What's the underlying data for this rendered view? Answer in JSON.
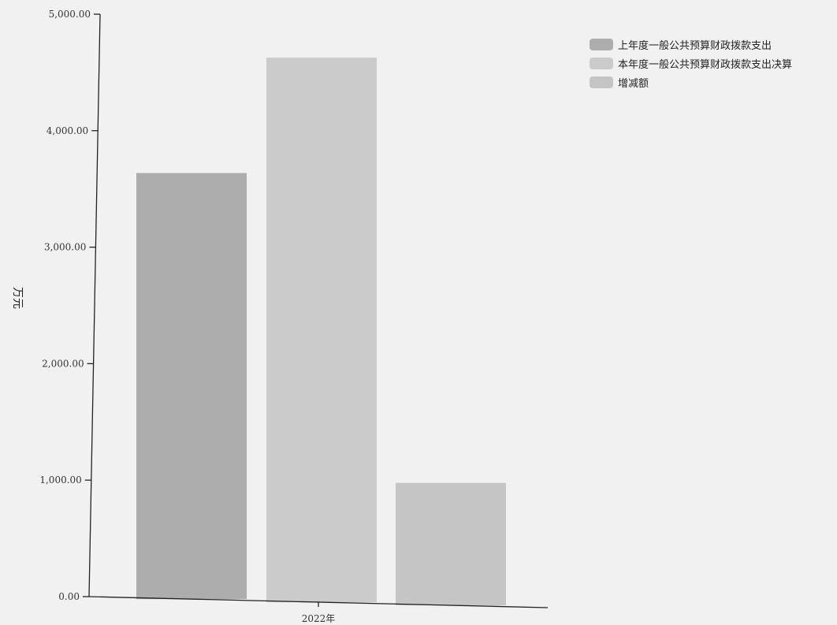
{
  "chart_data": {
    "type": "bar",
    "categories": [
      "2022年"
    ],
    "series": [
      {
        "name": "上年度一般公共预算财政拨款支出",
        "values": [
          3650
        ],
        "color": "#adadad"
      },
      {
        "name": "本年度一般公共预算财政拨款支出决算",
        "values": [
          4640
        ],
        "color": "#cbcbcb"
      },
      {
        "name": "增减额",
        "values": [
          990
        ],
        "color": "#c5c5c5"
      }
    ],
    "ylabel": "万元",
    "ylim": [
      0,
      5000
    ],
    "yticks": [
      "0.00",
      "1,000.00",
      "2,000.00",
      "3,000.00",
      "4,000.00",
      "5,000.00"
    ],
    "legend_position": "top-right",
    "grid": false
  }
}
